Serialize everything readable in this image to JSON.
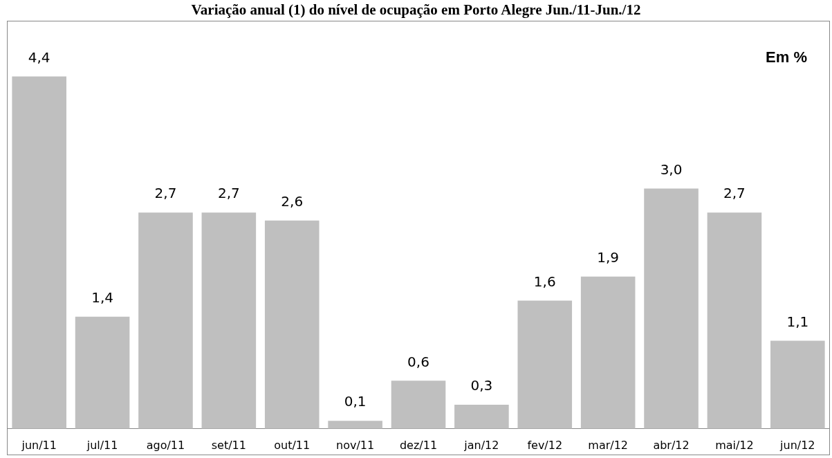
{
  "chart_data": {
    "type": "bar",
    "title": "Variação anual (1) do nível de ocupação em Porto Alegre Jun./11-Jun./12",
    "categories": [
      "jun/11",
      "jul/11",
      "ago/11",
      "set/11",
      "out/11",
      "nov/11",
      "dez/11",
      "jan/12",
      "fev/12",
      "mar/12",
      "abr/12",
      "mai/12",
      "jun/12"
    ],
    "values": [
      4.4,
      1.4,
      2.7,
      2.7,
      2.6,
      0.1,
      0.6,
      0.3,
      1.6,
      1.9,
      3.0,
      2.7,
      1.1
    ],
    "value_labels": [
      "4,4",
      "1,4",
      "2,7",
      "2,7",
      "2,6",
      "0,1",
      "0,6",
      "0,3",
      "1,6",
      "1,9",
      "3,0",
      "2,7",
      "1,1"
    ],
    "color": "#bfbfbf",
    "tick_labels": "x",
    "grid": false,
    "legend": false,
    "annotations": [
      "Em %"
    ]
  }
}
